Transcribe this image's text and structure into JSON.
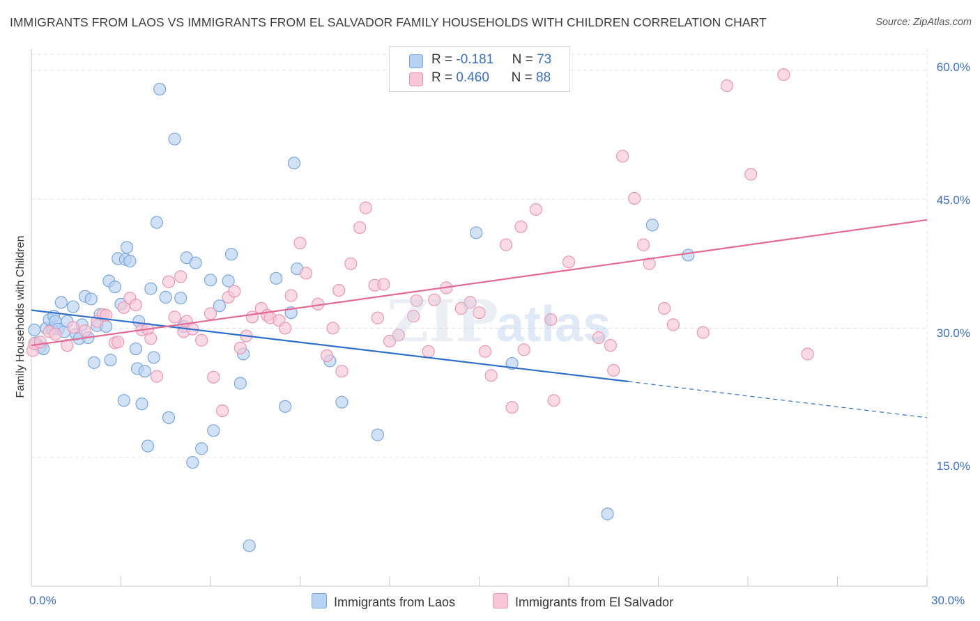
{
  "header": {
    "title": "IMMIGRANTS FROM LAOS VS IMMIGRANTS FROM EL SALVADOR FAMILY HOUSEHOLDS WITH CHILDREN CORRELATION CHART",
    "source": "Source: ZipAtlas.com"
  },
  "legend_top": {
    "laos": {
      "r_label": "R =",
      "r_value": "-0.181",
      "n_label": "N =",
      "n_value": "73"
    },
    "elsalvador": {
      "r_label": "R =",
      "r_value": "0.460",
      "n_label": "N =",
      "n_value": "88"
    }
  },
  "legend_bottom": {
    "laos": "Immigrants from Laos",
    "elsalvador": "Immigrants from El Salvador"
  },
  "colors": {
    "laos_fill": "#b8d2f3",
    "laos_stroke": "#7aa6e0",
    "laos_line": "#2f6fcc",
    "els_fill": "#f8c6d6",
    "els_stroke": "#eb97b3",
    "els_line": "#e56a93",
    "tick_label": "#3b6fc4",
    "grid": "#e3e3e3"
  },
  "chart_data": {
    "type": "scatter",
    "title": "IMMIGRANTS FROM LAOS VS IMMIGRANTS FROM EL SALVADOR FAMILY HOUSEHOLDS WITH CHILDREN CORRELATION CHART",
    "xlabel": "",
    "ylabel": "Family Households with Children",
    "xlim": [
      0,
      30
    ],
    "ylim": [
      0,
      62.5
    ],
    "x_tick_labels": [
      "0.0%",
      "30.0%"
    ],
    "y_ticks": [
      15,
      30,
      45,
      60
    ],
    "y_tick_labels": [
      "15.0%",
      "30.0%",
      "45.0%",
      "60.0%"
    ],
    "grid": true,
    "legend_position": "top-center",
    "series": [
      {
        "name": "Immigrants from Laos",
        "trend": {
          "x": [
            0,
            20
          ],
          "y": [
            32.1,
            23.8
          ],
          "dashed_extension_to": [
            30,
            19.6
          ]
        },
        "points": [
          [
            0.1,
            29.8
          ],
          [
            0.15,
            28.3
          ],
          [
            0.3,
            27.8
          ],
          [
            0.4,
            27.6
          ],
          [
            0.5,
            30.0
          ],
          [
            0.6,
            31.0
          ],
          [
            0.7,
            29.9
          ],
          [
            0.75,
            31.4
          ],
          [
            0.8,
            30.8
          ],
          [
            0.9,
            29.9
          ],
          [
            1.0,
            33.0
          ],
          [
            1.1,
            29.6
          ],
          [
            1.2,
            30.8
          ],
          [
            1.4,
            32.5
          ],
          [
            1.5,
            29.3
          ],
          [
            1.6,
            28.8
          ],
          [
            1.7,
            30.4
          ],
          [
            1.8,
            33.7
          ],
          [
            1.9,
            28.9
          ],
          [
            2.0,
            33.4
          ],
          [
            2.1,
            26.0
          ],
          [
            2.2,
            30.3
          ],
          [
            2.3,
            31.6
          ],
          [
            2.5,
            30.2
          ],
          [
            2.6,
            35.5
          ],
          [
            2.65,
            26.3
          ],
          [
            2.8,
            34.8
          ],
          [
            2.9,
            38.1
          ],
          [
            3.0,
            32.8
          ],
          [
            3.1,
            21.6
          ],
          [
            3.15,
            38.0
          ],
          [
            3.2,
            39.4
          ],
          [
            3.3,
            37.8
          ],
          [
            3.5,
            27.6
          ],
          [
            3.55,
            25.3
          ],
          [
            3.6,
            30.8
          ],
          [
            3.7,
            21.2
          ],
          [
            3.8,
            25.0
          ],
          [
            3.9,
            16.3
          ],
          [
            4.0,
            34.6
          ],
          [
            4.1,
            26.6
          ],
          [
            4.2,
            42.3
          ],
          [
            4.3,
            57.8
          ],
          [
            4.5,
            33.6
          ],
          [
            4.6,
            19.6
          ],
          [
            4.8,
            52.0
          ],
          [
            5.0,
            33.5
          ],
          [
            5.1,
            30.2
          ],
          [
            5.2,
            38.2
          ],
          [
            5.4,
            14.4
          ],
          [
            5.5,
            37.6
          ],
          [
            5.7,
            16.0
          ],
          [
            6.0,
            35.6
          ],
          [
            6.1,
            18.1
          ],
          [
            6.3,
            32.6
          ],
          [
            6.6,
            35.5
          ],
          [
            6.7,
            38.6
          ],
          [
            7.0,
            23.6
          ],
          [
            7.1,
            27.0
          ],
          [
            7.3,
            4.7
          ],
          [
            8.2,
            35.8
          ],
          [
            8.5,
            20.9
          ],
          [
            8.7,
            31.8
          ],
          [
            8.8,
            49.2
          ],
          [
            8.9,
            36.9
          ],
          [
            10.0,
            26.2
          ],
          [
            10.4,
            21.4
          ],
          [
            11.6,
            17.6
          ],
          [
            14.9,
            41.1
          ],
          [
            16.1,
            25.9
          ],
          [
            19.3,
            8.4
          ],
          [
            20.8,
            42.0
          ],
          [
            22.0,
            38.5
          ]
        ]
      },
      {
        "name": "Immigrants from El Salvador",
        "trend": {
          "x": [
            0,
            30
          ],
          "y": [
            28.0,
            42.6
          ]
        },
        "points": [
          [
            0.05,
            27.4
          ],
          [
            0.1,
            28.2
          ],
          [
            0.3,
            28.4
          ],
          [
            0.6,
            29.6
          ],
          [
            0.8,
            29.3
          ],
          [
            1.2,
            28.0
          ],
          [
            1.4,
            30.1
          ],
          [
            1.8,
            29.7
          ],
          [
            2.2,
            30.8
          ],
          [
            2.4,
            31.6
          ],
          [
            2.5,
            31.5
          ],
          [
            2.8,
            28.3
          ],
          [
            2.9,
            28.4
          ],
          [
            3.1,
            32.4
          ],
          [
            3.3,
            33.5
          ],
          [
            3.5,
            32.7
          ],
          [
            3.7,
            29.8
          ],
          [
            3.9,
            29.9
          ],
          [
            4.0,
            28.8
          ],
          [
            4.2,
            24.4
          ],
          [
            4.6,
            35.4
          ],
          [
            4.8,
            31.3
          ],
          [
            5.0,
            36.0
          ],
          [
            5.1,
            29.6
          ],
          [
            5.2,
            30.8
          ],
          [
            5.4,
            29.9
          ],
          [
            5.7,
            28.6
          ],
          [
            6.0,
            31.7
          ],
          [
            6.1,
            24.3
          ],
          [
            6.4,
            20.4
          ],
          [
            6.6,
            33.6
          ],
          [
            6.8,
            34.3
          ],
          [
            7.0,
            27.7
          ],
          [
            7.2,
            29.1
          ],
          [
            7.4,
            31.3
          ],
          [
            7.7,
            32.3
          ],
          [
            7.9,
            31.5
          ],
          [
            8.0,
            31.2
          ],
          [
            8.3,
            30.9
          ],
          [
            8.5,
            30.0
          ],
          [
            8.7,
            33.8
          ],
          [
            9.0,
            39.9
          ],
          [
            9.2,
            36.4
          ],
          [
            9.6,
            32.8
          ],
          [
            9.9,
            26.8
          ],
          [
            10.1,
            30.0
          ],
          [
            10.3,
            34.4
          ],
          [
            10.4,
            25.0
          ],
          [
            10.7,
            37.5
          ],
          [
            11.0,
            41.7
          ],
          [
            11.2,
            44.0
          ],
          [
            11.5,
            35.0
          ],
          [
            11.6,
            31.2
          ],
          [
            11.8,
            35.1
          ],
          [
            12.0,
            28.5
          ],
          [
            12.3,
            29.2
          ],
          [
            12.8,
            31.4
          ],
          [
            12.9,
            33.2
          ],
          [
            13.3,
            27.3
          ],
          [
            13.5,
            33.3
          ],
          [
            13.9,
            34.7
          ],
          [
            14.4,
            32.3
          ],
          [
            14.7,
            33.0
          ],
          [
            15.0,
            31.8
          ],
          [
            15.2,
            27.3
          ],
          [
            15.4,
            24.5
          ],
          [
            15.9,
            39.7
          ],
          [
            16.1,
            20.8
          ],
          [
            16.4,
            41.8
          ],
          [
            16.5,
            27.5
          ],
          [
            16.9,
            43.8
          ],
          [
            17.4,
            31.0
          ],
          [
            17.5,
            21.6
          ],
          [
            18.0,
            37.7
          ],
          [
            19.0,
            28.9
          ],
          [
            19.4,
            28.0
          ],
          [
            19.5,
            25.1
          ],
          [
            19.8,
            50.0
          ],
          [
            20.2,
            45.1
          ],
          [
            20.5,
            39.7
          ],
          [
            20.7,
            37.5
          ],
          [
            21.2,
            32.3
          ],
          [
            21.5,
            30.4
          ],
          [
            22.5,
            29.5
          ],
          [
            23.3,
            58.2
          ],
          [
            24.1,
            47.9
          ],
          [
            25.2,
            59.5
          ],
          [
            26.0,
            27.0
          ]
        ]
      }
    ]
  }
}
